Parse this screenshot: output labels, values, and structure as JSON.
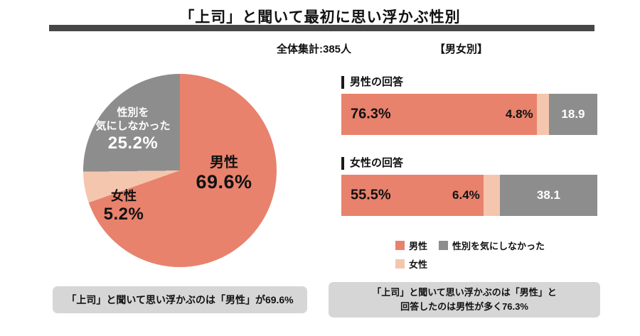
{
  "page": {
    "title": "「上司」と聞いて最初に思い浮かぶ性別",
    "total_label": "全体集計:385人",
    "section_label": "【男女別】"
  },
  "colors": {
    "male": "#E8826D",
    "female": "#F4C6AE",
    "neutral": "#8D8D8D",
    "title_rule": "#474747",
    "callout_bg": "#D6D6D6",
    "text": "#111111"
  },
  "chart_data": [
    {
      "type": "pie",
      "name": "overall",
      "title": "全体集計:385人",
      "slices": [
        {
          "label": "男性",
          "value": 69.6,
          "display": "69.6%",
          "color": "#E8826D",
          "label_color": "#111111"
        },
        {
          "label": "女性",
          "value": 5.2,
          "display": "5.2%",
          "color": "#F4C6AE",
          "label_color": "#111111"
        },
        {
          "label": "性別を気にしなかった",
          "label_display": "性別を\n気にしなかった",
          "value": 25.2,
          "display": "25.2%",
          "color": "#8D8D8D",
          "label_color": "#FFFFFF"
        }
      ]
    },
    {
      "type": "bar",
      "name": "by-gender",
      "title": "【男女別】",
      "orientation": "horizontal",
      "stacked": true,
      "xlim": [
        0,
        100
      ],
      "categories": [
        "男性の回答",
        "女性の回答"
      ],
      "series": [
        {
          "name": "男性",
          "color": "#E8826D",
          "values": [
            76.3,
            55.5
          ],
          "labels": [
            "76.3%",
            "55.5%"
          ]
        },
        {
          "name": "女性",
          "color": "#F4C6AE",
          "values": [
            4.8,
            6.4
          ],
          "labels": [
            "4.8%",
            "6.4%"
          ]
        },
        {
          "name": "性別を気にしなかった",
          "color": "#8D8D8D",
          "values": [
            18.9,
            38.1
          ],
          "labels": [
            "18.9",
            "38.1"
          ]
        }
      ],
      "legend": [
        "男性",
        "女性",
        "性別を気にしなかった"
      ],
      "legend_position": "bottom"
    }
  ],
  "callouts": {
    "left": "「上司」と聞いて思い浮かぶのは「男性」が69.6%",
    "right": "「上司」と聞いて思い浮かぶのは「男性」と\n回答したのは男性が多く76.3%"
  }
}
